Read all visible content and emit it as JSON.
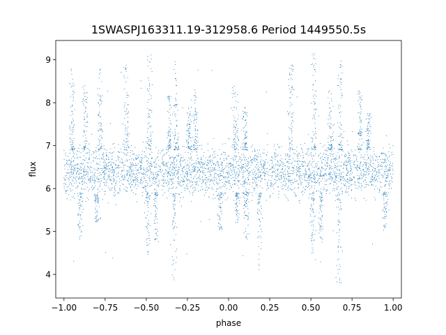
{
  "chart_data": {
    "type": "scatter",
    "title": "1SWASPJ163311.19-312958.6 Period 1449550.5s",
    "xlabel": "phase",
    "ylabel": "flux",
    "xlim": [
      -1.05,
      1.05
    ],
    "ylim": [
      3.45,
      9.45
    ],
    "xticks": [
      -1.0,
      -0.75,
      -0.5,
      -0.25,
      0.0,
      0.25,
      0.5,
      0.75,
      1.0
    ],
    "xtick_labels": [
      "−1.00",
      "−0.75",
      "−0.50",
      "−0.25",
      "0.00",
      "0.25",
      "0.50",
      "0.75",
      "1.00"
    ],
    "yticks": [
      4,
      5,
      6,
      7,
      8,
      9
    ],
    "ytick_labels": [
      "4",
      "5",
      "6",
      "7",
      "8",
      "9"
    ],
    "grid": false,
    "legend": "none",
    "marker_color": "#1f77b4",
    "series": [
      {
        "baseline_flux": 6.4,
        "phase_range": [
          -1.0,
          1.0
        ],
        "core_spread": [
          5.7,
          7.1
        ],
        "bright_excursions": [
          {
            "phase": -0.95,
            "max": 8.8
          },
          {
            "phase": -0.87,
            "max": 8.4
          },
          {
            "phase": -0.78,
            "max": 8.9
          },
          {
            "phase": -0.62,
            "max": 8.9
          },
          {
            "phase": -0.48,
            "max": 9.15
          },
          {
            "phase": -0.36,
            "max": 8.2
          },
          {
            "phase": -0.32,
            "max": 9.1
          },
          {
            "phase": -0.24,
            "max": 7.9
          },
          {
            "phase": -0.2,
            "max": 8.3
          },
          {
            "phase": 0.04,
            "max": 8.4
          },
          {
            "phase": 0.1,
            "max": 7.9
          },
          {
            "phase": 0.38,
            "max": 8.9
          },
          {
            "phase": 0.52,
            "max": 9.15
          },
          {
            "phase": 0.62,
            "max": 8.3
          },
          {
            "phase": 0.68,
            "max": 9.1
          },
          {
            "phase": 0.8,
            "max": 8.3
          },
          {
            "phase": 0.85,
            "max": 7.8
          }
        ],
        "faint_excursions": [
          {
            "phase": -0.9,
            "min": 4.8
          },
          {
            "phase": -0.8,
            "min": 5.2
          },
          {
            "phase": -0.49,
            "min": 4.45
          },
          {
            "phase": -0.44,
            "min": 4.75
          },
          {
            "phase": -0.33,
            "min": 3.75
          },
          {
            "phase": -0.05,
            "min": 5.0
          },
          {
            "phase": 0.05,
            "min": 5.2
          },
          {
            "phase": 0.11,
            "min": 4.8
          },
          {
            "phase": 0.19,
            "min": 4.1
          },
          {
            "phase": 0.51,
            "min": 4.45
          },
          {
            "phase": 0.56,
            "min": 4.75
          },
          {
            "phase": 0.67,
            "min": 3.75
          },
          {
            "phase": 0.95,
            "min": 5.0
          }
        ]
      }
    ]
  }
}
